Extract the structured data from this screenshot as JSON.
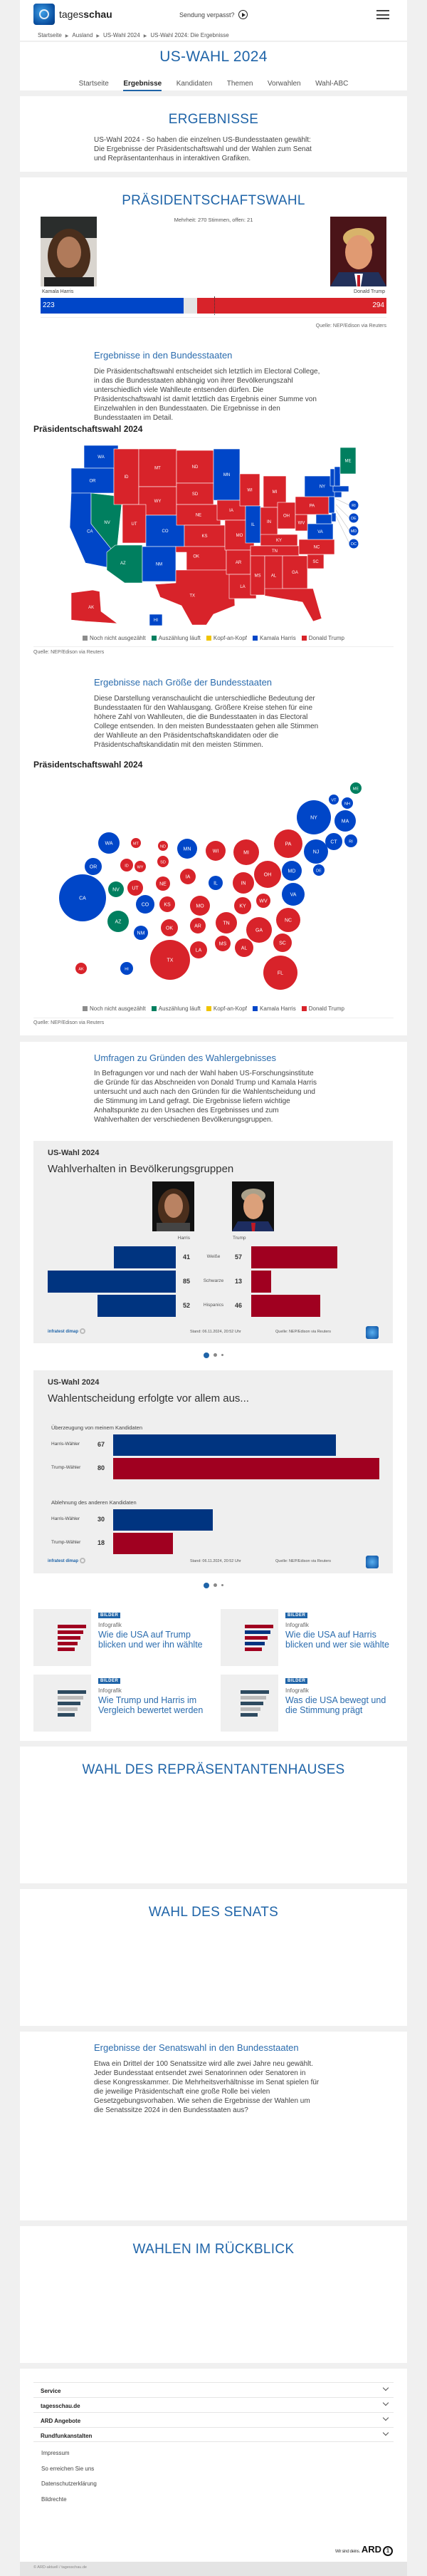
{
  "header": {
    "logo_regular": "tages",
    "logo_bold": "schau",
    "missed_show": "Sendung verpasst?"
  },
  "breadcrumb": [
    "Startseite",
    "Ausland",
    "US-Wahl 2024",
    "US-Wahl 2024: Die Ergebnisse"
  ],
  "page_title": "US-WAHL 2024",
  "nav": {
    "items": [
      "Startseite",
      "Ergebnisse",
      "Kandidaten",
      "Themen",
      "Vorwahlen",
      "Wahl-ABC"
    ],
    "active": "Ergebnisse"
  },
  "intro": {
    "heading": "ERGEBNISSE",
    "text": "US-Wahl 2024 - So haben die einzelnen US-Bundesstaaten gewählt: Die Ergebnisse der Präsidentschaftswahl und der Wahlen zum Senat und Repräsentantenhaus in interaktiven Grafiken."
  },
  "colors": {
    "harris": "#0046c8",
    "trump": "#d8232a",
    "counting": "#007f5f",
    "not_counted": "#8c8c8c",
    "tossup": "#f0c400",
    "heading": "#1f64a8",
    "poll_harris": "#003480",
    "poll_trump": "#a00020"
  },
  "president": {
    "heading": "PRÄSIDENTSCHAFTSWAHL",
    "majority_note": "Mehrheit: 270 Stimmen, offen: 21",
    "harris": {
      "name": "Kamala Harris",
      "votes": 223
    },
    "trump": {
      "name": "Donald Trump",
      "votes": 294
    },
    "open": 21,
    "majority": 270,
    "source": "Quelle: NEP/Edison via Reuters"
  },
  "states_section": {
    "heading": "Ergebnisse in den Bundesstaaten",
    "text": "Die Präsidentschaftswahl entscheidet sich letztlich im Electoral College, in das die Bundesstaaten abhängig von ihrer Bevölkerungszahl unterschiedlich viele Wahlleute entsenden dürfen. Die Präsidentschaftswahl ist damit letztlich das Ergebnis einer Summe von Einzelwahlen in den Bundesstaaten. Die Ergebnisse in den Bundesstaaten im Detail.",
    "chart_title": "Präsidentschaftswahl 2024",
    "source": "Quelle: NEP/Edison via Reuters"
  },
  "size_section": {
    "heading": "Ergebnisse nach Größe der Bundesstaaten",
    "text": "Diese Darstellung veranschaulicht die unterschiedliche Bedeutung der Bundesstaaten für den Wahlausgang. Größere Kreise stehen für eine höhere Zahl von Wahlleuten, die die Bundesstaaten in das Electoral College entsenden. In den meisten Bundesstaaten gehen alle Stimmen der Wahlleute an den Präsidentschaftskandidaten oder die Präsidentschaftskandidatin mit den meisten Stimmen.",
    "chart_title": "Präsidentschaftswahl 2024",
    "source": "Quelle: NEP/Edison via Reuters"
  },
  "legend": [
    {
      "label": "Noch nicht ausgezählt",
      "key": "not_counted"
    },
    {
      "label": "Auszählung läuft",
      "key": "counting"
    },
    {
      "label": "Kopf-an-Kopf",
      "key": "tossup"
    },
    {
      "label": "Kamala Harris",
      "key": "harris"
    },
    {
      "label": "Donald Trump",
      "key": "trump"
    }
  ],
  "states": {
    "WA": "harris",
    "OR": "harris",
    "CA": "harris",
    "NV": "counting",
    "ID": "trump",
    "MT": "trump",
    "WY": "trump",
    "UT": "trump",
    "CO": "harris",
    "AZ": "counting",
    "NM": "harris",
    "ND": "trump",
    "SD": "trump",
    "NE": "trump",
    "KS": "trump",
    "OK": "trump",
    "TX": "trump",
    "MN": "harris",
    "IA": "trump",
    "MO": "trump",
    "AR": "trump",
    "LA": "trump",
    "WI": "trump",
    "IL": "harris",
    "MI": "trump",
    "IN": "trump",
    "OH": "trump",
    "KY": "trump",
    "TN": "trump",
    "MS": "trump",
    "AL": "trump",
    "GA": "trump",
    "FL": "trump",
    "SC": "trump",
    "NC": "trump",
    "VA": "harris",
    "WV": "trump",
    "PA": "trump",
    "NY": "harris",
    "NJ": "harris",
    "DE": "harris",
    "MD": "harris",
    "DC": "harris",
    "CT": "harris",
    "RI": "harris",
    "MA": "harris",
    "VT": "harris",
    "NH": "harris",
    "ME": "counting",
    "AK": "trump",
    "HI": "harris"
  },
  "polls": {
    "heading": "Umfragen zu Gründen des Wahlergebnisses",
    "text": "In Befragungen vor und nach der Wahl haben US-Forschungsinstitute die Gründe für das Abschneiden von Donald Trump und Kamala Harris untersucht und auch nach den Gründen für die Wahlentscheidung und die Stimmung im Land gefragt. Die Ergebnisse liefern wichtige Anhaltspunkte zu den Ursachen des Ergebnisses und zum Wahlverhalten der verschiedenen Bevölkerungsgruppen.",
    "graphic1": {
      "kicker": "US-Wahl 2024",
      "title": "Wahlverhalten in Bevölkerungsgruppen",
      "harris_label": "Harris",
      "trump_label": "Trump",
      "rows": [
        {
          "group": "Weiße",
          "harris": 41,
          "trump": 57
        },
        {
          "group": "Schwarze",
          "harris": 85,
          "trump": 13
        },
        {
          "group": "Hispanics",
          "harris": 52,
          "trump": 46
        }
      ]
    },
    "graphic2": {
      "kicker": "US-Wahl 2024",
      "title": "Wahlentscheidung erfolgte vor allem aus...",
      "groups": [
        {
          "label": "Überzeugung von meinem Kandidaten",
          "rows": [
            {
              "label": "Harris-Wähler",
              "value": 67,
              "party": "harris"
            },
            {
              "label": "Trump-Wähler",
              "value": 80,
              "party": "trump"
            }
          ]
        },
        {
          "label": "Ablehnung des anderen Kandidaten",
          "rows": [
            {
              "label": "Harris-Wähler",
              "value": 30,
              "party": "harris"
            },
            {
              "label": "Trump-Wähler",
              "value": 18,
              "party": "trump"
            }
          ]
        }
      ]
    },
    "footer": {
      "institute": "infratest dimap",
      "stand": "Stand:  06.11.2024, 20:52 Uhr",
      "source": "Quelle: NEP/Edison via Reuters"
    },
    "carousel": {
      "count": 3,
      "active": 1
    }
  },
  "teasers": [
    {
      "badge": "BILDER",
      "kicker": "Infografik",
      "title": "Wie die USA auf Trump blicken und wer ihn wählte"
    },
    {
      "badge": "BILDER",
      "kicker": "Infografik",
      "title": "Wie die USA auf Harris blicken und wer sie wählte"
    },
    {
      "badge": "BILDER",
      "kicker": "Infografik",
      "title": "Wie Trump und Harris im Vergleich bewertet werden"
    },
    {
      "badge": "BILDER",
      "kicker": "Infografik",
      "title": "Was die USA bewegt und die Stimmung prägt"
    }
  ],
  "house": {
    "heading": "WAHL DES REPRÄSENTANTENHAUSES"
  },
  "senate": {
    "heading": "WAHL DES SENATS",
    "sub_heading": "Ergebnisse der Senatswahl in den Bundesstaaten",
    "text": "Etwa ein Drittel der 100 Senatssitze wird alle zwei Jahre neu gewählt. Jeder Bundesstaat entsendet zwei Senatorinnen oder Senatoren in diese Kongresskammer. Die Mehrheitsverhältnisse im Senat spielen für die jeweilige Präsidentschaft eine große Rolle bei vielen Gesetzgebungsvorhaben. Wie sehen die Ergebnisse der Wahlen um die Senatssitze 2024 in den Bundesstaaten aus?"
  },
  "history": {
    "heading": "WAHLEN IM RÜCKBLICK"
  },
  "footer": {
    "accordion": [
      "Service",
      "tagesschau.de",
      "ARD Angebote",
      "Rundfunkanstalten"
    ],
    "links": [
      "Impressum",
      "So erreichen Sie uns",
      "Datenschutzerklärung",
      "Bildrechte"
    ],
    "ard_claim": "Wir sind deins.",
    "ard_logo": "ARD",
    "copyright": "© ARD-aktuell / tagesschau.de"
  }
}
